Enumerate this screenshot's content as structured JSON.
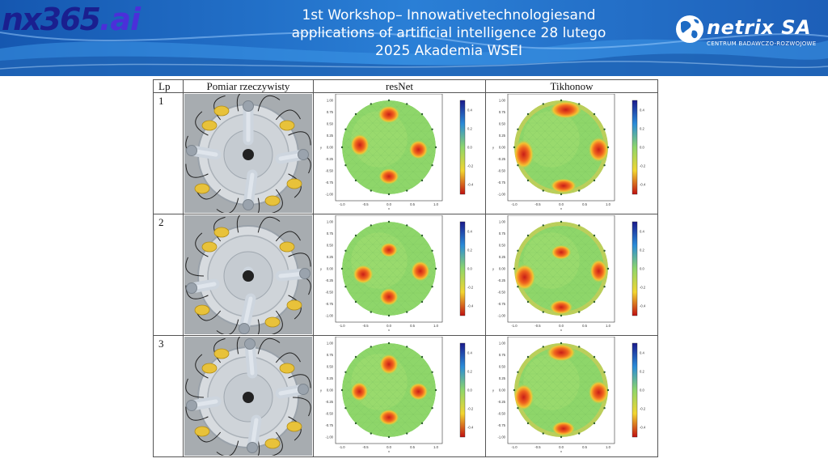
{
  "header": {
    "logo_left_main": "nx365",
    "logo_left_suffix": ".ai",
    "title_line1": "1st Workshop– Innowativetechnologiesand",
    "title_line2": "applications of artificial intelligence 28 lutego",
    "title_line3": "2025 Akademia WSEI",
    "logo_right_name": "netrix SA",
    "logo_right_sub": "CENTRUM BADAWCZO-ROZWOJOWE"
  },
  "table": {
    "headers": [
      "Lp",
      "Pomiar rzeczywisty",
      "resNet",
      "Tikhonow"
    ],
    "rows": [
      {
        "lp": "1",
        "photo": "measurement-photo-1",
        "resnet": "resnet-reconstruction-1",
        "tikhonow": "tikhonow-reconstruction-1"
      },
      {
        "lp": "2",
        "photo": "measurement-photo-2",
        "resnet": "resnet-reconstruction-2",
        "tikhonow": "tikhonow-reconstruction-2"
      },
      {
        "lp": "3",
        "photo": "measurement-photo-3",
        "resnet": "resnet-reconstruction-3",
        "tikhonow": "tikhonow-reconstruction-3"
      }
    ]
  },
  "plots": {
    "y_ticks": [
      "1.00",
      "0.75",
      "0.50",
      "0.25",
      "0.00",
      "-0.25",
      "-0.50",
      "-0.75",
      "-1.00"
    ],
    "x_ticks": [
      "-1.0",
      "-0.5",
      "0.0",
      "0.5",
      "1.0"
    ],
    "xlabel": "x",
    "ylabel": "y",
    "colorbar_ticks": [
      "0.4",
      "0.2",
      "0.0",
      "-0.2",
      "-0.4"
    ]
  },
  "colors": {
    "banner": "#1d6bc4",
    "plot_background": "#8ed66a",
    "inclusion": "#d83020"
  }
}
